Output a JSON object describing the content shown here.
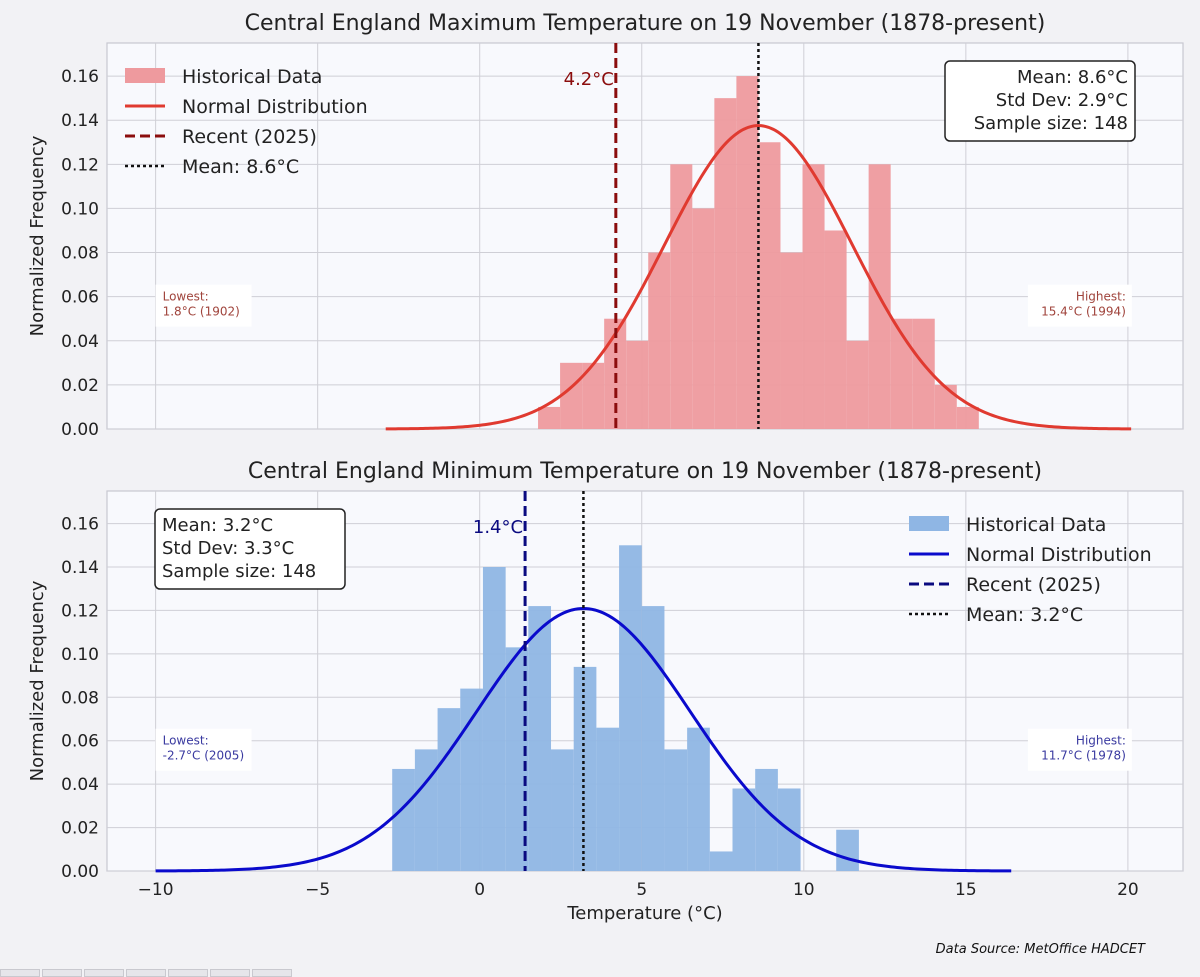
{
  "source_note": "Data Source: MetOffice HADCET",
  "shared_xlabel": "Temperature (°C)",
  "shared_ylabel": "Normalized Frequency",
  "xticks": [
    -10,
    -5,
    0,
    5,
    10,
    15,
    20
  ],
  "yticks": [
    0.0,
    0.02,
    0.04,
    0.06,
    0.08,
    0.1,
    0.12,
    0.14,
    0.16
  ],
  "chart_data": [
    {
      "type": "bar",
      "title": "Central England Maximum Temperature on 19 November (1878-present)",
      "xlabel": "",
      "ylabel": "Normalized Frequency",
      "xlim": [
        -11.5,
        21.7
      ],
      "ylim": [
        0,
        0.175
      ],
      "grid": true,
      "legend_position": "top-left",
      "colors": {
        "hist": "#ee9a9e",
        "normal": "#e03a30",
        "recent": "#8b0d0d",
        "mean": "#111111",
        "note": "#a0443c"
      },
      "legend": [
        "Historical Data",
        "Normal Distribution",
        "Recent (2025)",
        "Mean: 8.6°C"
      ],
      "stats_box": [
        "Mean: 8.6°C",
        "Std Dev: 2.9°C",
        "Sample size: 148"
      ],
      "stats_position": "top-right",
      "recent_value": 4.2,
      "recent_label": "4.2°C",
      "mean_value": 8.6,
      "std_value": 2.9,
      "lowest": {
        "title": "Lowest:",
        "text": "1.8°C (1902)"
      },
      "highest": {
        "title": "Highest:",
        "text": "15.4°C (1994)"
      },
      "curve_range": [
        -2.9,
        20.1
      ],
      "bins": [
        {
          "x0": 1.8,
          "x1": 2.48,
          "value": 0.01
        },
        {
          "x0": 2.48,
          "x1": 3.16,
          "value": 0.03
        },
        {
          "x0": 3.16,
          "x1": 3.84,
          "value": 0.03
        },
        {
          "x0": 3.84,
          "x1": 4.52,
          "value": 0.05
        },
        {
          "x0": 4.52,
          "x1": 5.2,
          "value": 0.04
        },
        {
          "x0": 5.2,
          "x1": 5.88,
          "value": 0.08
        },
        {
          "x0": 5.88,
          "x1": 6.56,
          "value": 0.12
        },
        {
          "x0": 6.56,
          "x1": 7.24,
          "value": 0.1
        },
        {
          "x0": 7.24,
          "x1": 7.92,
          "value": 0.15
        },
        {
          "x0": 7.92,
          "x1": 8.6,
          "value": 0.16
        },
        {
          "x0": 8.6,
          "x1": 9.28,
          "value": 0.13
        },
        {
          "x0": 9.28,
          "x1": 9.96,
          "value": 0.08
        },
        {
          "x0": 9.96,
          "x1": 10.64,
          "value": 0.12
        },
        {
          "x0": 10.64,
          "x1": 11.32,
          "value": 0.09
        },
        {
          "x0": 11.32,
          "x1": 12.0,
          "value": 0.04
        },
        {
          "x0": 12.0,
          "x1": 12.68,
          "value": 0.12
        },
        {
          "x0": 12.68,
          "x1": 13.36,
          "value": 0.05
        },
        {
          "x0": 13.36,
          "x1": 14.04,
          "value": 0.05
        },
        {
          "x0": 14.04,
          "x1": 14.72,
          "value": 0.02
        },
        {
          "x0": 14.72,
          "x1": 15.4,
          "value": 0.01
        }
      ]
    },
    {
      "type": "bar",
      "title": "Central England Minimum Temperature on 19 November (1878-present)",
      "xlabel": "Temperature (°C)",
      "ylabel": "Normalized Frequency",
      "xlim": [
        -11.5,
        21.7
      ],
      "ylim": [
        0,
        0.175
      ],
      "grid": true,
      "legend_position": "top-right",
      "colors": {
        "hist": "#8fb6e4",
        "normal": "#0a0acc",
        "recent": "#0a0a80",
        "mean": "#111111",
        "note": "#3a3aa0"
      },
      "legend": [
        "Historical Data",
        "Normal Distribution",
        "Recent (2025)",
        "Mean: 3.2°C"
      ],
      "stats_box": [
        "Mean: 3.2°C",
        "Std Dev: 3.3°C",
        "Sample size: 148"
      ],
      "stats_position": "top-left",
      "recent_value": 1.4,
      "recent_label": "1.4°C",
      "mean_value": 3.2,
      "std_value": 3.3,
      "lowest": {
        "title": "Lowest:",
        "text": "-2.7°C (2005)"
      },
      "highest": {
        "title": "Highest:",
        "text": "11.7°C (1978)"
      },
      "curve_range": [
        -10.0,
        16.4
      ],
      "bins": [
        {
          "x0": -2.7,
          "x1": -2.0,
          "value": 0.047
        },
        {
          "x0": -2.0,
          "x1": -1.3,
          "value": 0.056
        },
        {
          "x0": -1.3,
          "x1": -0.6,
          "value": 0.075
        },
        {
          "x0": -0.6,
          "x1": 0.1,
          "value": 0.084
        },
        {
          "x0": 0.1,
          "x1": 0.8,
          "value": 0.14
        },
        {
          "x0": 0.8,
          "x1": 1.5,
          "value": 0.103
        },
        {
          "x0": 1.5,
          "x1": 2.2,
          "value": 0.122
        },
        {
          "x0": 2.2,
          "x1": 2.9,
          "value": 0.056
        },
        {
          "x0": 2.9,
          "x1": 3.6,
          "value": 0.094
        },
        {
          "x0": 3.6,
          "x1": 4.3,
          "value": 0.066
        },
        {
          "x0": 4.3,
          "x1": 5.0,
          "value": 0.15
        },
        {
          "x0": 5.0,
          "x1": 5.7,
          "value": 0.122
        },
        {
          "x0": 5.7,
          "x1": 6.4,
          "value": 0.056
        },
        {
          "x0": 6.4,
          "x1": 7.1,
          "value": 0.066
        },
        {
          "x0": 7.1,
          "x1": 7.8,
          "value": 0.009
        },
        {
          "x0": 7.8,
          "x1": 8.5,
          "value": 0.038
        },
        {
          "x0": 8.5,
          "x1": 9.2,
          "value": 0.047
        },
        {
          "x0": 9.2,
          "x1": 9.9,
          "value": 0.038
        },
        {
          "x0": 9.9,
          "x1": 11.0,
          "value": 0.0
        },
        {
          "x0": 11.0,
          "x1": 11.7,
          "value": 0.019
        }
      ]
    }
  ]
}
